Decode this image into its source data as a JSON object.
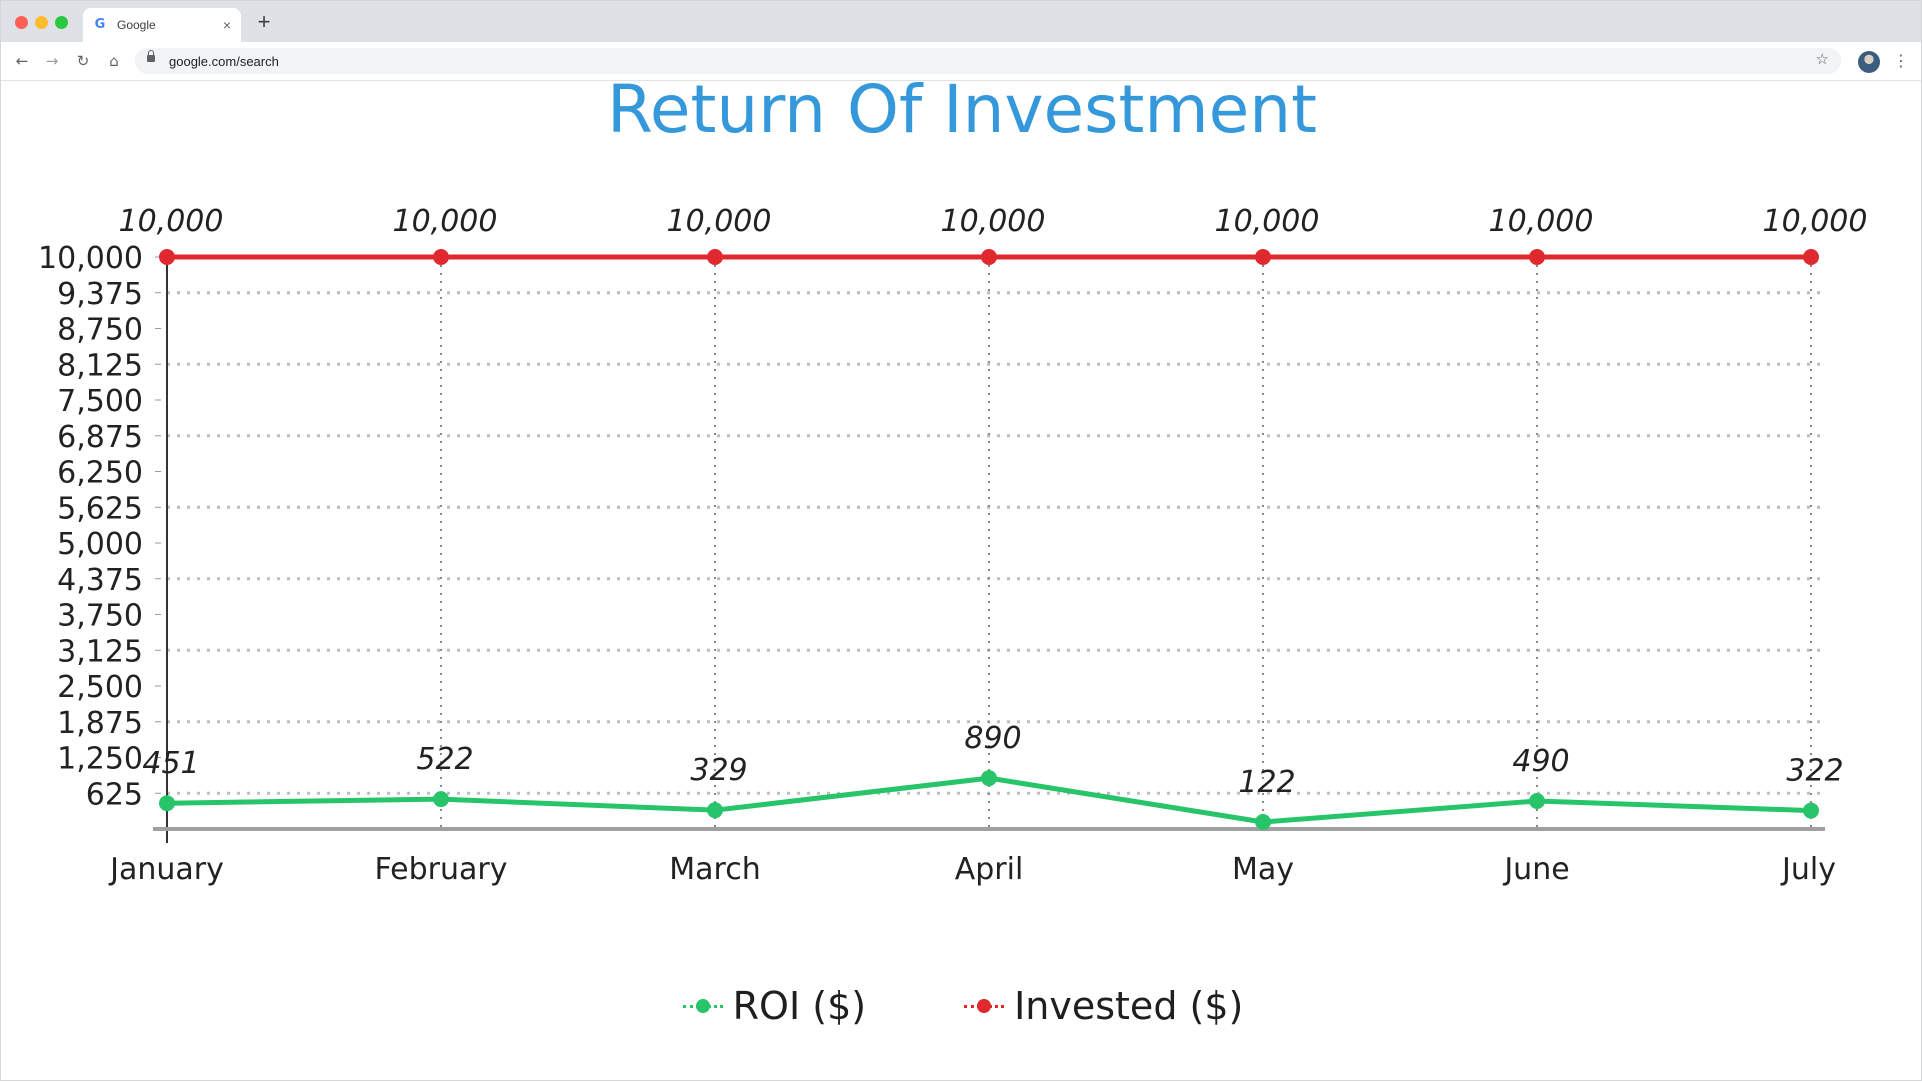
{
  "browser": {
    "tab_title": "Google",
    "url": "google.com/search",
    "new_tab_symbol": "+",
    "close_symbol": "×",
    "icons": [
      "google-favicon",
      "back-icon",
      "forward-icon",
      "reload-icon",
      "home-icon",
      "lock-icon",
      "star-icon",
      "avatar",
      "menu-icon"
    ]
  },
  "chart_data": {
    "type": "line",
    "title": "Return Of Investment",
    "categories": [
      "January",
      "February",
      "March",
      "April",
      "May",
      "June",
      "July"
    ],
    "series": [
      {
        "name": "ROI ($)",
        "values": [
          451,
          522,
          329,
          890,
          122,
          490,
          322
        ],
        "color": "#27c46a"
      },
      {
        "name": "Invested ($)",
        "values": [
          10000,
          10000,
          10000,
          10000,
          10000,
          10000,
          10000
        ],
        "color": "#e0292f"
      }
    ],
    "data_labels": {
      "ROI ($)": [
        "451",
        "522",
        "329",
        "890",
        "122",
        "490",
        "322"
      ],
      "Invested ($)": [
        "10,000",
        "10,000",
        "10,000",
        "10,000",
        "10,000",
        "10,000",
        "10,000"
      ]
    },
    "y_ticks": [
      625,
      1250,
      1875,
      2500,
      3125,
      3750,
      4375,
      5000,
      5625,
      6250,
      6875,
      7500,
      8125,
      8750,
      9375,
      10000
    ],
    "y_tick_labels": [
      "625",
      "1,250",
      "1,875",
      "2,500",
      "3,125",
      "3,750",
      "4,375",
      "5,000",
      "5,625",
      "6,250",
      "6,875",
      "7,500",
      "8,125",
      "8,750",
      "9,375",
      "10,000"
    ],
    "ylim": [
      0,
      10000
    ],
    "xlabel": "",
    "ylabel": "",
    "grid": true,
    "legend_position": "bottom-center"
  }
}
